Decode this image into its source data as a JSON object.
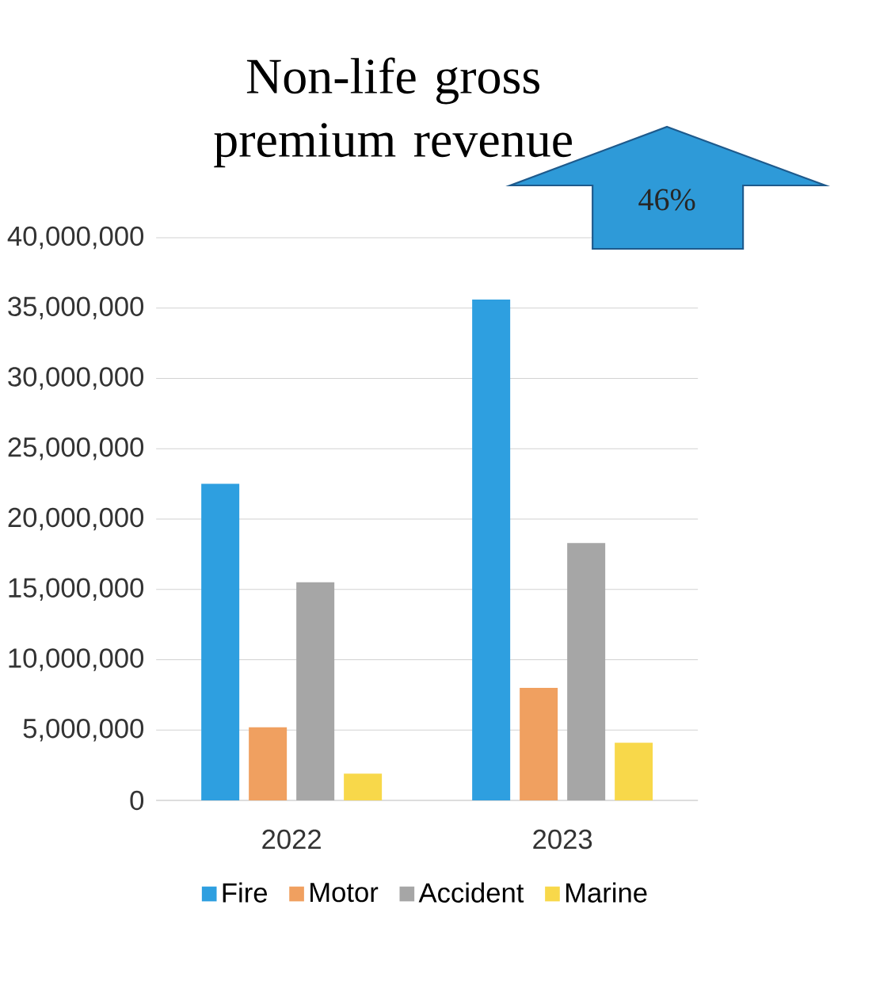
{
  "chart_data": {
    "type": "bar",
    "title": "Non-life gross premium revenue",
    "categories": [
      "2022",
      "2023"
    ],
    "series": [
      {
        "name": "Fire",
        "color": "#2e9fe0",
        "values": [
          22500000,
          35600000
        ]
      },
      {
        "name": "Motor",
        "color": "#f0a060",
        "values": [
          5200000,
          8000000
        ]
      },
      {
        "name": "Accident",
        "color": "#a6a6a6",
        "values": [
          15500000,
          18300000
        ]
      },
      {
        "name": "Marine",
        "color": "#f8d84a",
        "values": [
          1900000,
          4100000
        ]
      }
    ],
    "ylim": [
      0,
      40000000
    ],
    "yticks": [
      {
        "value": 0,
        "label": "0"
      },
      {
        "value": 5000000,
        "label": "5,000,000"
      },
      {
        "value": 10000000,
        "label": "10,000,000"
      },
      {
        "value": 15000000,
        "label": "15,000,000"
      },
      {
        "value": 20000000,
        "label": "20,000,000"
      },
      {
        "value": 25000000,
        "label": "25,000,000"
      },
      {
        "value": 30000000,
        "label": "30,000,000"
      },
      {
        "value": 35000000,
        "label": "35,000,000"
      },
      {
        "value": 40000000,
        "label": "40,000,000"
      }
    ],
    "grid": "y",
    "legend": "bottom",
    "annotations": [
      "46%"
    ]
  }
}
